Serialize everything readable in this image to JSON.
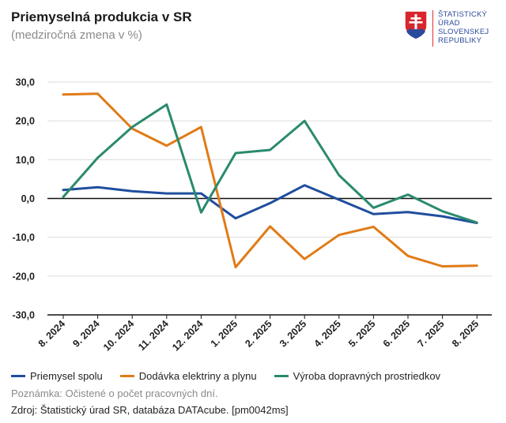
{
  "header": {
    "title": "Priemyselná produkcia v SR",
    "subtitle": "(medziročná zmena v %)"
  },
  "logo": {
    "lines": [
      "ŠTATISTICKÝ",
      "ÚRAD",
      "SLOVENSKEJ",
      "REPUBLIKY"
    ],
    "shield_color": "#d7262c",
    "cross_color": "#ffffff",
    "hills_color": "#2b4a9b"
  },
  "chart_data": {
    "type": "line",
    "categories": [
      "8. 2024",
      "9. 2024",
      "10. 2024",
      "11. 2024",
      "12. 2024",
      "1. 2025",
      "2. 2025",
      "3. 2025",
      "4. 2025",
      "5. 2025",
      "6. 2025",
      "7. 2025",
      "8. 2025"
    ],
    "ylim": [
      -30,
      30
    ],
    "yticks": [
      "30,0",
      "20,0",
      "10,0",
      "0,0",
      "-10,0",
      "-20,0",
      "-30,0"
    ],
    "grid": true,
    "legend_position": "bottom-left",
    "series": [
      {
        "name": "Priemysel spolu",
        "color": "#1f4e9e",
        "values": [
          2.2,
          2.9,
          1.9,
          1.3,
          1.3,
          -5.1,
          -1.2,
          3.4,
          -0.3,
          -4.0,
          -3.5,
          -4.6,
          -6.3
        ]
      },
      {
        "name": "Dodávka elektriny a plynu",
        "color": "#e07b16",
        "values": [
          26.8,
          27.0,
          18.0,
          13.6,
          18.4,
          -17.7,
          -7.2,
          -15.6,
          -9.4,
          -7.3,
          -14.8,
          -17.5,
          -17.3
        ]
      },
      {
        "name": "Výroba dopravných prostriedkov",
        "color": "#2a8a6e",
        "values": [
          0.4,
          10.5,
          18.4,
          24.2,
          -3.6,
          11.7,
          12.5,
          20.0,
          6.0,
          -2.4,
          1.0,
          -3.3,
          -6.2
        ]
      }
    ]
  },
  "footer": {
    "note": "Poznámka: Očistené o počet pracovných dní.",
    "source": "Zdroj: Štatistický úrad SR, databáza DATAcube. [pm0042ms]"
  }
}
